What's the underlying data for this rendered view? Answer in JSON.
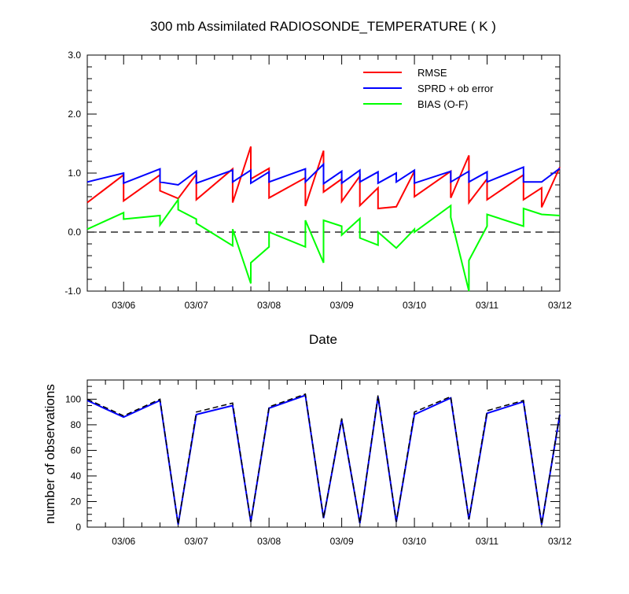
{
  "chart_data": [
    {
      "type": "line",
      "title": "300 mb Assimilated RADIOSONDE_TEMPERATURE ( K )",
      "xlabel": "Date",
      "ylabel": "",
      "categories": [
        "03/06",
        "03/07",
        "03/08",
        "03/09",
        "03/10",
        "03/11",
        "03/12"
      ],
      "xlim": [
        0,
        6.5
      ],
      "ylim": [
        -1.0,
        3.0
      ],
      "yticks": [
        "-1.0",
        "0.0",
        "1.0",
        "2.0",
        "3.0"
      ],
      "reference_line": 0.0,
      "legend_position": "top-right",
      "series": [
        {
          "name": "RMSE",
          "color": "#ff0000",
          "x": [
            0,
            0.5,
            0.5,
            1,
            1,
            1.25,
            1.25,
            1.5,
            1.5,
            2,
            2,
            2.25,
            2.25,
            2.5,
            2.5,
            3,
            3,
            3.25,
            3.25,
            3.5,
            3.5,
            3.75,
            3.75,
            4,
            4,
            4.25,
            4.25,
            4.5,
            4.5,
            5,
            5,
            5.25,
            5.25,
            5.5,
            5.5,
            6,
            6,
            6.25,
            6.25,
            6.5
          ],
          "y": [
            0.5,
            0.97,
            0.53,
            0.97,
            0.7,
            0.57,
            0.57,
            0.98,
            0.55,
            1.07,
            0.5,
            1.45,
            0.9,
            1.08,
            0.58,
            0.92,
            0.44,
            1.38,
            0.68,
            0.9,
            0.52,
            0.95,
            0.45,
            0.75,
            0.4,
            0.43,
            0.43,
            1.03,
            0.6,
            1.03,
            0.58,
            1.3,
            0.5,
            0.9,
            0.55,
            0.97,
            0.55,
            0.75,
            0.42,
            1.1
          ]
        },
        {
          "name": "SPRD + ob error",
          "color": "#0000ff",
          "x": [
            0,
            0.5,
            0.5,
            1,
            1,
            1.25,
            1.5,
            1.5,
            2,
            2,
            2.25,
            2.25,
            2.5,
            2.5,
            3,
            3,
            3.25,
            3.25,
            3.5,
            3.5,
            3.75,
            3.75,
            4,
            4,
            4.25,
            4.25,
            4.5,
            4.5,
            5,
            5,
            5.25,
            5.25,
            5.5,
            5.5,
            6,
            6,
            6.25,
            6.5
          ],
          "y": [
            0.85,
            1.0,
            0.83,
            1.07,
            0.85,
            0.8,
            1.03,
            0.83,
            1.05,
            0.85,
            1.05,
            0.83,
            1.02,
            0.85,
            1.07,
            0.85,
            1.15,
            0.82,
            1.03,
            0.83,
            1.05,
            0.85,
            1.02,
            0.83,
            1.0,
            0.85,
            1.05,
            0.83,
            1.03,
            0.85,
            1.03,
            0.85,
            1.02,
            0.85,
            1.1,
            0.85,
            0.85,
            1.08
          ]
        },
        {
          "name": "BIAS (O-F)",
          "color": "#00ff00",
          "x": [
            0,
            0.5,
            0.5,
            1,
            1,
            1.25,
            1.25,
            1.5,
            1.5,
            2,
            2,
            2.25,
            2.25,
            2.5,
            2.5,
            3,
            3,
            3.25,
            3.25,
            3.5,
            3.5,
            3.75,
            3.75,
            4,
            4,
            4.25,
            4.25,
            4.5,
            4.5,
            5,
            5,
            5.25,
            5.25,
            5.5,
            5.5,
            6,
            6,
            6.25,
            6.5
          ],
          "y": [
            0.05,
            0.33,
            0.22,
            0.28,
            0.12,
            0.55,
            0.38,
            0.22,
            0.15,
            -0.23,
            0.05,
            -0.87,
            -0.52,
            -0.25,
            0.0,
            -0.25,
            0.2,
            -0.52,
            0.2,
            0.1,
            -0.05,
            0.23,
            -0.1,
            -0.22,
            0.0,
            -0.27,
            -0.27,
            0.05,
            0.0,
            0.45,
            0.25,
            -1.0,
            -0.48,
            0.1,
            0.3,
            0.1,
            0.4,
            0.3,
            0.28
          ]
        }
      ]
    },
    {
      "type": "line",
      "title": "",
      "xlabel": "",
      "ylabel": "number of observations",
      "categories": [
        "03/06",
        "03/07",
        "03/08",
        "03/09",
        "03/10",
        "03/11",
        "03/12"
      ],
      "xlim": [
        0,
        6.5
      ],
      "ylim": [
        0,
        115
      ],
      "yticks": [
        "0",
        "20",
        "40",
        "60",
        "80",
        "100"
      ],
      "series": [
        {
          "name": "",
          "color": "#0000ff",
          "style": "solid",
          "x": [
            0,
            0.5,
            1,
            1.25,
            1.5,
            2,
            2.25,
            2.5,
            3,
            3.25,
            3.5,
            3.75,
            4,
            4.25,
            4.5,
            5,
            5.25,
            5.5,
            6,
            6.25,
            6.5
          ],
          "y": [
            99,
            86,
            99,
            2,
            88,
            95,
            4,
            93,
            103,
            7,
            84,
            3,
            102,
            4,
            88,
            101,
            6,
            89,
            98,
            2,
            88
          ]
        },
        {
          "name": "",
          "color": "#000000",
          "style": "dashed",
          "x": [
            0,
            0.5,
            1,
            1.25,
            1.5,
            2,
            2.25,
            2.5,
            3,
            3.25,
            3.5,
            3.75,
            4,
            4.25,
            4.5,
            5,
            5.25,
            5.5,
            6,
            6.25,
            6.5
          ],
          "y": [
            100,
            87,
            100,
            2,
            90,
            97,
            4,
            94,
            104,
            7,
            85,
            3,
            103,
            4,
            90,
            102,
            6,
            91,
            99,
            2,
            89
          ]
        }
      ]
    }
  ]
}
